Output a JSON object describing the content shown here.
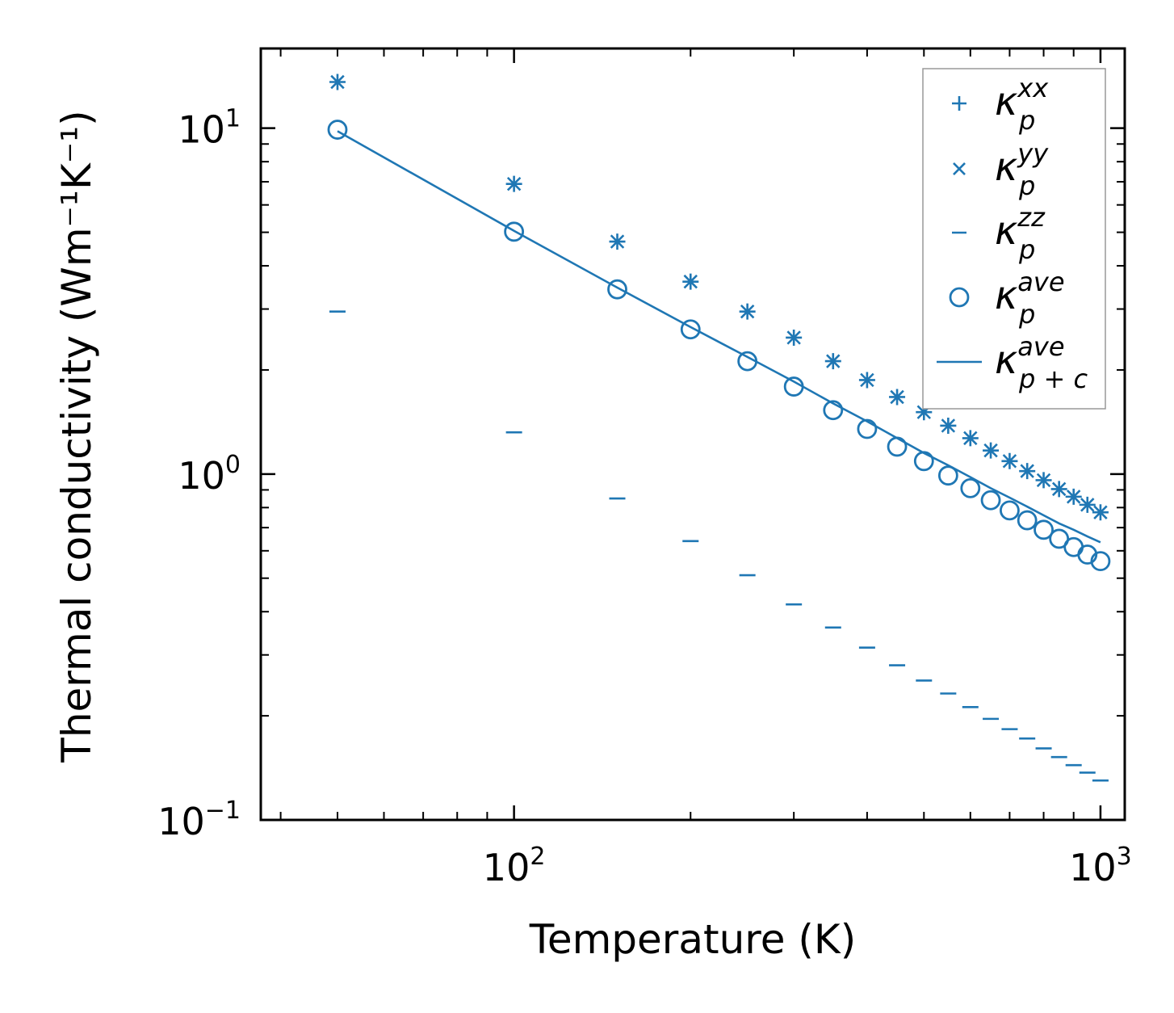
{
  "chart_data": {
    "type": "scatter",
    "xscale": "log",
    "yscale": "log",
    "xlabel": "Temperature (K)",
    "ylabel": "Thermal conductivity (Wm⁻¹K⁻¹)",
    "xlim": [
      37,
      1100
    ],
    "ylim": [
      0.1,
      17
    ],
    "x_ticks": [
      {
        "value": 100,
        "base": "10",
        "exp": "2"
      },
      {
        "value": 1000,
        "base": "10",
        "exp": "3"
      }
    ],
    "y_ticks": [
      {
        "value": 0.1,
        "base": "10",
        "exp": "−1"
      },
      {
        "value": 1,
        "base": "10",
        "exp": "0"
      },
      {
        "value": 10,
        "base": "10",
        "exp": "1"
      }
    ],
    "x": [
      50,
      100,
      150,
      200,
      250,
      300,
      350,
      400,
      450,
      500,
      550,
      600,
      650,
      700,
      750,
      800,
      850,
      900,
      950,
      1000
    ],
    "series": [
      {
        "name": "kxx",
        "label_main": "κ",
        "label_sub": "p",
        "label_sup": "xx",
        "marker": "plus",
        "values": [
          13.6,
          6.9,
          4.7,
          3.6,
          2.95,
          2.48,
          2.12,
          1.87,
          1.67,
          1.51,
          1.38,
          1.27,
          1.17,
          1.09,
          1.02,
          0.96,
          0.905,
          0.86,
          0.815,
          0.775
        ]
      },
      {
        "name": "kyy",
        "label_main": "κ",
        "label_sub": "p",
        "label_sup": "yy",
        "marker": "x",
        "values": [
          13.6,
          6.9,
          4.7,
          3.6,
          2.95,
          2.48,
          2.12,
          1.87,
          1.67,
          1.51,
          1.38,
          1.27,
          1.17,
          1.09,
          1.02,
          0.96,
          0.905,
          0.86,
          0.815,
          0.775
        ]
      },
      {
        "name": "kzz",
        "label_main": "κ",
        "label_sub": "p",
        "label_sup": "zz",
        "marker": "hline",
        "values": [
          2.95,
          1.32,
          0.85,
          0.64,
          0.51,
          0.42,
          0.36,
          0.315,
          0.28,
          0.253,
          0.232,
          0.212,
          0.196,
          0.183,
          0.172,
          0.161,
          0.152,
          0.144,
          0.137,
          0.13
        ]
      },
      {
        "name": "kave",
        "label_main": "κ",
        "label_sub": "p",
        "label_sup": "ave",
        "marker": "circle",
        "values": [
          9.9,
          5.02,
          3.42,
          2.62,
          2.12,
          1.79,
          1.53,
          1.35,
          1.2,
          1.09,
          0.99,
          0.91,
          0.84,
          0.785,
          0.735,
          0.69,
          0.65,
          0.615,
          0.585,
          0.56
        ]
      },
      {
        "name": "kave_pc",
        "label_main": "κ",
        "label_sub": "p + c",
        "label_sup": "ave",
        "marker": "line",
        "values": [
          9.8,
          5.05,
          3.46,
          2.66,
          2.18,
          1.85,
          1.6,
          1.42,
          1.27,
          1.15,
          1.06,
          0.98,
          0.91,
          0.855,
          0.805,
          0.76,
          0.72,
          0.69,
          0.66,
          0.635
        ]
      }
    ],
    "legend_position": "top-right",
    "color": "#1f77b4"
  }
}
